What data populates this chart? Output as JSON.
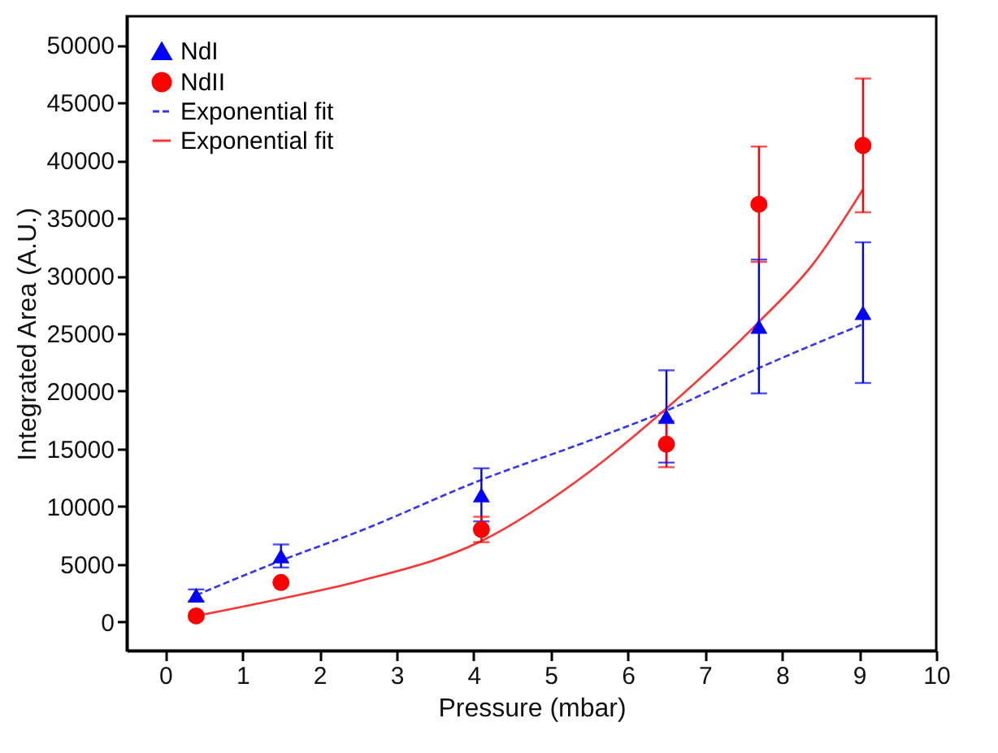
{
  "chart_data": {
    "type": "scatter",
    "xlabel": "Pressure (mbar)",
    "ylabel": "Integrated Area (A.U.)",
    "xlim": [
      -0.5,
      10
    ],
    "ylim": [
      -2500,
      52500
    ],
    "xticks": [
      0,
      1,
      2,
      3,
      4,
      5,
      6,
      7,
      8,
      9,
      10
    ],
    "yticks": [
      0,
      5000,
      10000,
      15000,
      20000,
      25000,
      30000,
      35000,
      40000,
      45000,
      50000
    ],
    "legend": "top left",
    "grid": false,
    "series": [
      {
        "name": "NdI",
        "type": "scatter",
        "marker": "triangle",
        "color": "#0000ff",
        "x": [
          0.4,
          1.5,
          4.1,
          6.5,
          7.7,
          9.05
        ],
        "values": [
          2300,
          5700,
          11000,
          17800,
          25600,
          26800
        ],
        "errors": [
          500,
          1000,
          2300,
          4000,
          5800,
          6100
        ]
      },
      {
        "name": "NdII",
        "type": "scatter",
        "marker": "circle",
        "color": "#ff0000",
        "x": [
          0.4,
          1.5,
          4.1,
          6.5,
          7.7,
          9.05
        ],
        "values": [
          500,
          3400,
          8000,
          15400,
          36200,
          41300
        ],
        "errors": [
          null,
          null,
          1100,
          2000,
          5000,
          5800
        ]
      },
      {
        "name": "Exponential fit",
        "type": "line",
        "line_style": "dashed",
        "color": "#3333ff",
        "x": [
          0.4,
          1.5,
          2.5,
          4.1,
          5.5,
          6.5,
          7.7,
          9.05
        ],
        "values": [
          2300,
          5300,
          7800,
          12300,
          15700,
          18300,
          22000,
          25800
        ]
      },
      {
        "name": "Exponential fit",
        "type": "line",
        "line_style": "solid",
        "color": "#ff3333",
        "x": [
          0.4,
          1.5,
          2.5,
          4.1,
          5.5,
          6.5,
          7.7,
          8.4,
          9.05
        ],
        "values": [
          500,
          2000,
          3500,
          7000,
          13000,
          18500,
          26000,
          31000,
          37500
        ]
      }
    ]
  }
}
